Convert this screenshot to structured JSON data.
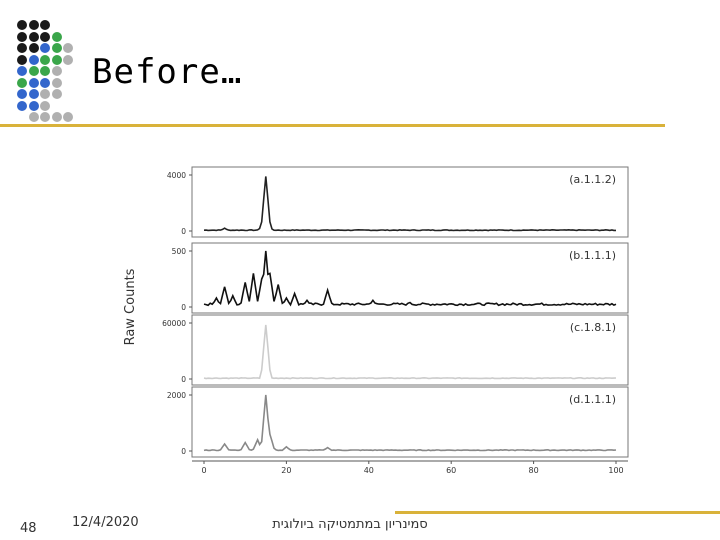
{
  "slide": {
    "title": "Before…",
    "number": "48",
    "date": "12/4/2020",
    "footer": "סמינריון במתמטיקה ביולוגית"
  },
  "colors": {
    "accent_rule": "#d9b23a",
    "dot_black": "#1a1a1a",
    "dot_blue": "#3366cc",
    "dot_green": "#3aa64a",
    "dot_gray": "#b0b0b0"
  },
  "chart_data": {
    "type": "line",
    "ylabel": "Raw Counts",
    "x_ticks": [
      "0",
      "20",
      "40",
      "60",
      "80",
      "100"
    ],
    "xlim": [
      0,
      100
    ],
    "panels": [
      {
        "label": "(a.1.1.2)",
        "y_ticks": [
          "4000",
          "0"
        ],
        "ylim": [
          0,
          4000
        ],
        "color": "#222222",
        "peak_x": 15,
        "peak_y": 3900,
        "peaks": [
          [
            5,
            200
          ],
          [
            14,
            300
          ],
          [
            15,
            3900
          ],
          [
            16,
            250
          ],
          [
            30,
            80
          ]
        ]
      },
      {
        "label": "(b.1.1.1)",
        "y_ticks": [
          "500",
          "0"
        ],
        "ylim": [
          0,
          500
        ],
        "color": "#111111",
        "peak_x": 15,
        "peak_y": 500,
        "peaks": [
          [
            3,
            80
          ],
          [
            5,
            180
          ],
          [
            7,
            100
          ],
          [
            10,
            220
          ],
          [
            12,
            300
          ],
          [
            14,
            250
          ],
          [
            15,
            500
          ],
          [
            16,
            300
          ],
          [
            18,
            200
          ],
          [
            20,
            80
          ],
          [
            22,
            120
          ],
          [
            25,
            60
          ],
          [
            30,
            150
          ],
          [
            41,
            60
          ],
          [
            50,
            40
          ]
        ]
      },
      {
        "label": "(c.1.8.1)",
        "y_ticks": [
          "60000",
          "0"
        ],
        "ylim": [
          0,
          60000
        ],
        "color": "#cccccc",
        "peak_x": 15,
        "peak_y": 58000,
        "peaks": [
          [
            15,
            58000
          ],
          [
            16,
            2000
          ]
        ]
      },
      {
        "label": "(d.1.1.1)",
        "y_ticks": [
          "2000",
          "0"
        ],
        "ylim": [
          0,
          2000
        ],
        "color": "#888888",
        "peak_x": 15,
        "peak_y": 2000,
        "peaks": [
          [
            5,
            250
          ],
          [
            10,
            300
          ],
          [
            13,
            400
          ],
          [
            15,
            2000
          ],
          [
            16,
            600
          ],
          [
            20,
            150
          ],
          [
            30,
            120
          ]
        ]
      }
    ]
  }
}
